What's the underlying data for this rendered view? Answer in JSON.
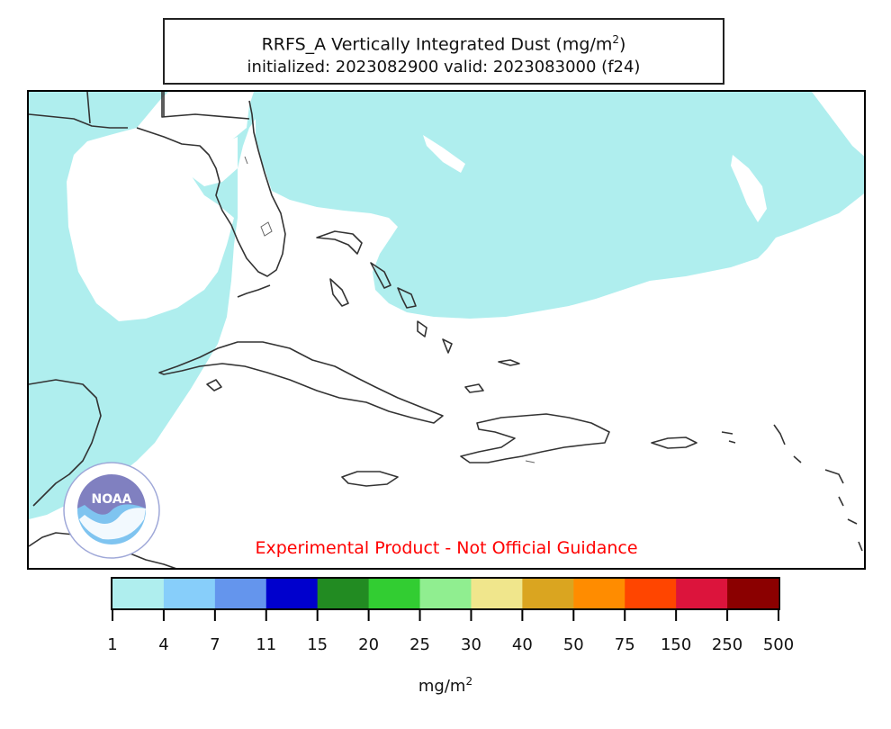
{
  "title": {
    "line1_prefix": "RRFS_A Vertically Integrated Dust (mg/m",
    "line1_sup": "2",
    "line1_suffix": ")",
    "line2": "initialized: 2023082900 valid: 2023083000 (f24)"
  },
  "disclaimer": "Experimental Product - Not Official Guidance",
  "colorbar": {
    "unit_prefix": "mg/m",
    "unit_sup": "2",
    "ticks": [
      "1",
      "4",
      "7",
      "11",
      "15",
      "20",
      "25",
      "30",
      "40",
      "50",
      "75",
      "150",
      "250",
      "500"
    ],
    "colors": [
      "#afeeee",
      "#87cefa",
      "#6495ed",
      "#0000cd",
      "#228b22",
      "#32cd32",
      "#90ee90",
      "#f0e68c",
      "#daa520",
      "#ff8c00",
      "#ff4500",
      "#dc143c",
      "#8b0000"
    ]
  },
  "dust_color": "#afeeee",
  "coast_color": "#333333",
  "logo": {
    "text": "NOAA",
    "ring_color": "#7f7fbf",
    "sky_color": "#7fc4f0"
  }
}
